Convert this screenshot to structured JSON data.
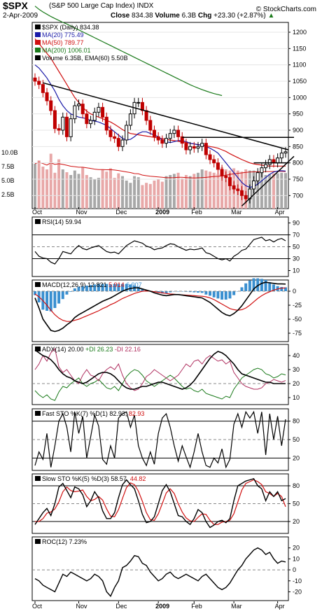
{
  "header": {
    "ticker": "$SPX",
    "name": "(S&P 500 Large Cap Index)",
    "exchange": "INDX",
    "date": "2-Apr-2009",
    "close_label": "Close",
    "close_value": "834.38",
    "volume_label": "Volume",
    "volume_value": "6.3B",
    "chg_label": "Chg",
    "chg_value": "+23.30 (+2.87%)",
    "chg_arrow": "▲",
    "watermark": "© StockCharts.com"
  },
  "colors": {
    "ma20": "#1a1aa8",
    "ma50": "#d01010",
    "ma200": "#1a7a1a",
    "up_candle": "#000000",
    "down_candle": "#c00000",
    "volume_up": "#a8a8a8",
    "volume_down": "#e8a8a8",
    "ema_volume": "#d01010",
    "macd_hist": "#3a8fd0",
    "pdi": "#1a7a1a",
    "mdi": "#b03060"
  },
  "x_axis": {
    "labels": [
      "Oct",
      "Nov",
      "Dec",
      "2009",
      "Feb",
      "Mar",
      "Apr"
    ],
    "bold_label": "2009"
  },
  "chart_data": [
    {
      "type": "candlestick",
      "panel": "price",
      "legend": [
        {
          "text": "$SPX (Daily) 834.38",
          "color": "#000000"
        },
        {
          "text": "MA(20) 775.49",
          "color": "#1a1aa8"
        },
        {
          "text": "MA(50) 789.77",
          "color": "#d01010"
        },
        {
          "text": "MA(200) 1006.01",
          "color": "#1a7a1a"
        },
        {
          "text": "Volume 6.35B, EMA(60) 5.50B",
          "color": "#000000"
        }
      ],
      "y_ticks": [
        1200,
        1150,
        1100,
        1050,
        1000,
        950,
        900,
        850,
        800,
        750,
        700
      ],
      "volume_ticks": [
        "10.0B",
        "7.5B",
        "5.0B",
        "2.5B"
      ],
      "ylim": [
        660,
        1230
      ],
      "closes": [
        1050,
        1040,
        1015,
        990,
        960,
        905,
        900,
        940,
        880,
        935,
        975,
        980,
        950,
        920,
        930,
        955,
        970,
        940,
        900,
        880,
        875,
        850,
        870,
        915,
        950,
        985,
        985,
        960,
        930,
        900,
        880,
        870,
        860,
        875,
        890,
        900,
        880,
        860,
        840,
        850,
        845,
        850,
        860,
        825,
        810,
        800,
        780,
        760,
        755,
        730,
        720,
        715,
        700,
        690,
        720,
        745,
        770,
        785,
        795,
        810,
        800,
        815,
        830,
        834
      ],
      "ma20": [
        1100,
        1090,
        1075,
        1060,
        1040,
        1020,
        995,
        975,
        960,
        950,
        945,
        940,
        938,
        935,
        930,
        928,
        925,
        920,
        915,
        905,
        895,
        885,
        875,
        870,
        872,
        880,
        890,
        895,
        895,
        890,
        885,
        880,
        870,
        865,
        862,
        865,
        868,
        868,
        865,
        860,
        858,
        855,
        855,
        850,
        845,
        838,
        830,
        815,
        800,
        785,
        770,
        755,
        740,
        730,
        725,
        728,
        735,
        745,
        755,
        765,
        772,
        775,
        776,
        775
      ],
      "ma50": [
        1180,
        1165,
        1150,
        1135,
        1120,
        1100,
        1080,
        1060,
        1040,
        1020,
        1000,
        985,
        970,
        958,
        950,
        945,
        940,
        935,
        930,
        925,
        918,
        910,
        902,
        895,
        890,
        888,
        886,
        884,
        882,
        880,
        878,
        876,
        874,
        872,
        870,
        868,
        866,
        864,
        862,
        860,
        858,
        856,
        854,
        852,
        850,
        848,
        845,
        840,
        835,
        828,
        822,
        816,
        810,
        805,
        800,
        797,
        795,
        793,
        791,
        790,
        790,
        790,
        790,
        790
      ],
      "ma200": [
        1280,
        1270,
        1262,
        1255,
        1248,
        1242,
        1236,
        1230,
        1225,
        1219,
        1213,
        1207,
        1201,
        1195,
        1189,
        1183,
        1177,
        1171,
        1165,
        1159,
        1153,
        1147,
        1141,
        1135,
        1129,
        1123,
        1117,
        1111,
        1105,
        1099,
        1093,
        1087,
        1081,
        1075,
        1069,
        1063,
        1057,
        1051,
        1045,
        1039,
        1034,
        1029,
        1024,
        1020,
        1016,
        1012,
        1009,
        1006
      ],
      "volume": [
        8.0,
        8.6,
        7.5,
        7.0,
        9.8,
        6.4,
        8.8,
        7.0,
        6.5,
        6.0,
        6.8,
        6.2,
        7.4,
        6.0,
        5.6,
        5.2,
        5.5,
        7.0,
        6.6,
        7.2,
        5.5,
        6.3,
        5.8,
        5.0,
        4.6,
        5.8,
        5.6,
        4.2,
        4.6,
        4.4,
        5.0,
        5.2,
        4.8,
        5.8,
        6.0,
        6.2,
        6.4,
        5.4,
        6.0,
        5.8,
        6.2,
        6.4,
        7.0,
        6.8,
        6.6,
        6.4,
        6.2,
        7.4,
        7.0,
        6.8,
        7.2,
        6.8,
        6.6,
        7.0,
        6.8,
        6.8,
        6.6,
        6.4,
        6.0,
        6.2,
        6.3,
        6.3,
        6.4,
        6.35
      ]
    },
    {
      "type": "line",
      "panel": "rsi",
      "legend": "RSI(14) 59.94",
      "y_ticks": [
        90,
        70,
        50,
        30,
        10
      ],
      "ylim": [
        0,
        100
      ],
      "values": [
        42,
        34,
        31,
        30,
        24,
        21,
        30,
        42,
        40,
        38,
        46,
        52,
        47,
        45,
        48,
        50,
        52,
        47,
        42,
        40,
        41,
        38,
        45,
        52,
        56,
        60,
        58,
        56,
        51,
        49,
        45,
        47,
        48,
        52,
        55,
        54,
        50,
        47,
        44,
        46,
        45,
        46,
        48,
        40,
        38,
        34,
        30,
        28,
        30,
        26,
        34,
        38,
        44,
        46,
        54,
        62,
        64,
        66,
        60,
        62,
        58,
        62,
        64,
        60
      ]
    },
    {
      "type": "line",
      "panel": "macd",
      "legend": [
        {
          "text": "MACD(12,26,9) 12.821",
          "color": "#000000"
        },
        {
          "text": "5.914",
          "color": "#d01010"
        },
        {
          "text": "6.907",
          "color": "#3a8fd0"
        }
      ],
      "y_ticks": [
        0,
        -25,
        -50,
        -75
      ],
      "ylim": [
        -90,
        20
      ],
      "macd": [
        -12,
        -30,
        -50,
        -60,
        -70,
        -72,
        -70,
        -66,
        -60,
        -55,
        -47,
        -42,
        -38,
        -34,
        -30,
        -26,
        -22,
        -18,
        -15,
        -12,
        -8,
        -4,
        0,
        3,
        5,
        6,
        6,
        4,
        2,
        0,
        -3,
        -5,
        -7,
        -8,
        -7,
        -6,
        -6,
        -7,
        -8,
        -9,
        -10,
        -11,
        -12,
        -16,
        -20,
        -26,
        -32,
        -38,
        -42,
        -44,
        -40,
        -34,
        -26,
        -16,
        -6,
        4,
        10,
        14,
        16,
        15,
        14,
        13,
        13,
        12.8
      ],
      "signal": [
        -5,
        -10,
        -17,
        -25,
        -34,
        -42,
        -48,
        -52,
        -54,
        -54,
        -52,
        -50,
        -47,
        -44,
        -41,
        -38,
        -35,
        -31,
        -28,
        -24,
        -21,
        -17,
        -13,
        -10,
        -7,
        -4,
        -2,
        0,
        0.5,
        0,
        -1,
        -2,
        -3,
        -4,
        -5,
        -5.5,
        -6,
        -6.5,
        -7,
        -7.5,
        -8,
        -8.5,
        -9,
        -10,
        -12,
        -15,
        -19,
        -23,
        -27,
        -31,
        -33,
        -34,
        -33,
        -30,
        -25,
        -19,
        -13,
        -8,
        -4,
        -1,
        2,
        4,
        5.5,
        5.9
      ],
      "histogram": [
        -7,
        -20,
        -33,
        -35,
        -36,
        -30,
        -22,
        -14,
        -6,
        -1,
        5,
        8,
        9,
        10,
        11,
        12,
        13,
        13,
        13,
        12,
        13,
        13,
        13,
        13,
        12,
        10,
        8,
        4,
        1.5,
        0,
        -2,
        -3,
        -4,
        -4,
        -2,
        -0.5,
        0,
        -0.5,
        -1,
        -1.5,
        -2,
        -2.5,
        -3,
        -6,
        -8,
        -11,
        -13,
        -15,
        -15,
        -13,
        -7,
        0,
        7,
        14,
        19,
        23,
        23,
        22,
        20,
        16,
        12,
        9,
        7.5,
        6.9
      ]
    },
    {
      "type": "line",
      "panel": "adx",
      "legend": [
        {
          "text": "ADX(14) 20.00",
          "color": "#000000"
        },
        {
          "text": "+DI 26.23",
          "color": "#1a7a1a"
        },
        {
          "text": "-DI 22.16",
          "color": "#b03060"
        }
      ],
      "y_ticks": [
        40,
        30,
        20,
        10
      ],
      "ylim": [
        5,
        48
      ],
      "adx": [
        44,
        42,
        40,
        39,
        37,
        34,
        30,
        27,
        25,
        24,
        22,
        21,
        20,
        21,
        23,
        25,
        27,
        28,
        28,
        27,
        25,
        22,
        19,
        17,
        16,
        16,
        17,
        18,
        18,
        19,
        20,
        21,
        21,
        20,
        19,
        18,
        17,
        16,
        17,
        19,
        22,
        26,
        30,
        34,
        38,
        41,
        43,
        42,
        40,
        37,
        34,
        30,
        27,
        26,
        25,
        24,
        23,
        22,
        21,
        21,
        20,
        20,
        20,
        20
      ],
      "plus_di": [
        15,
        12,
        10,
        12,
        9,
        8,
        14,
        18,
        17,
        20,
        22,
        24,
        20,
        18,
        20,
        21,
        23,
        20,
        17,
        16,
        18,
        15,
        20,
        25,
        28,
        30,
        29,
        26,
        22,
        20,
        18,
        20,
        22,
        24,
        26,
        24,
        21,
        18,
        16,
        17,
        15,
        14,
        16,
        13,
        12,
        11,
        10,
        9,
        11,
        10,
        16,
        20,
        24,
        26,
        28,
        30,
        31,
        30,
        27,
        26,
        24,
        25,
        27,
        26.2
      ],
      "minus_di": [
        30,
        34,
        40,
        36,
        42,
        45,
        32,
        28,
        30,
        26,
        22,
        20,
        26,
        30,
        26,
        25,
        22,
        27,
        30,
        32,
        30,
        34,
        26,
        20,
        17,
        15,
        16,
        20,
        25,
        27,
        30,
        28,
        26,
        24,
        22,
        24,
        26,
        30,
        34,
        32,
        36,
        37,
        34,
        38,
        40,
        38,
        36,
        37,
        34,
        36,
        28,
        24,
        20,
        18,
        17,
        16,
        16,
        17,
        20,
        21,
        23,
        22,
        21,
        22.2
      ]
    },
    {
      "type": "line",
      "panel": "fast_sto",
      "legend": [
        {
          "text": "Fast STO %K(7) %D(1) 82.93,",
          "color": "#000000"
        },
        {
          "text": "82.93",
          "color": "#d01010"
        }
      ],
      "y_ticks": [
        80,
        50,
        20
      ],
      "ylim": [
        0,
        100
      ],
      "values": [
        8,
        30,
        18,
        60,
        5,
        40,
        80,
        92,
        70,
        30,
        95,
        60,
        88,
        20,
        55,
        90,
        72,
        18,
        10,
        40,
        20,
        85,
        92,
        95,
        70,
        90,
        40,
        20,
        8,
        30,
        10,
        60,
        85,
        92,
        70,
        40,
        15,
        40,
        22,
        5,
        30,
        60,
        30,
        8,
        5,
        20,
        12,
        35,
        5,
        18,
        75,
        92,
        70,
        95,
        85,
        95,
        60,
        95,
        25,
        92,
        50,
        88,
        40,
        83
      ]
    },
    {
      "type": "line",
      "panel": "slow_sto",
      "legend": [
        {
          "text": "Slow STO %K(5) %D(3) 58.57,",
          "color": "#000000"
        },
        {
          "text": "44.82",
          "color": "#d01010"
        }
      ],
      "y_ticks": [
        80,
        50,
        20
      ],
      "ylim": [
        0,
        100
      ],
      "k": [
        15,
        25,
        35,
        42,
        30,
        50,
        78,
        84,
        72,
        60,
        78,
        75,
        65,
        45,
        55,
        70,
        60,
        38,
        25,
        25,
        35,
        60,
        82,
        90,
        82,
        75,
        55,
        32,
        18,
        20,
        28,
        50,
        72,
        82,
        70,
        50,
        30,
        28,
        20,
        15,
        25,
        40,
        35,
        20,
        10,
        14,
        20,
        22,
        18,
        25,
        55,
        80,
        84,
        88,
        90,
        92,
        80,
        75,
        55,
        70,
        62,
        70,
        55,
        58.6
      ],
      "d": [
        20,
        20,
        25,
        34,
        36,
        41,
        53,
        70,
        78,
        72,
        70,
        71,
        73,
        62,
        55,
        57,
        62,
        56,
        41,
        29,
        28,
        40,
        59,
        77,
        85,
        82,
        71,
        54,
        35,
        23,
        22,
        33,
        50,
        68,
        75,
        67,
        50,
        36,
        26,
        21,
        20,
        27,
        33,
        32,
        22,
        15,
        15,
        19,
        20,
        22,
        33,
        53,
        73,
        84,
        87,
        90,
        87,
        82,
        70,
        67,
        62,
        67,
        62,
        44.8
      ]
    },
    {
      "type": "line",
      "panel": "roc",
      "legend": "ROC(12) 7.23%",
      "y_ticks": [
        20,
        10,
        0,
        -10,
        -20
      ],
      "ylim": [
        -28,
        30
      ],
      "values": [
        -8,
        -10,
        -14,
        -16,
        -18,
        -20,
        -12,
        -4,
        -6,
        -2,
        -4,
        -6,
        -8,
        -10,
        -8,
        -4,
        -6,
        -10,
        -20,
        -24,
        -16,
        -10,
        2,
        4,
        8,
        13,
        12,
        6,
        4,
        -2,
        -6,
        -10,
        -8,
        -4,
        -2,
        -6,
        -8,
        -6,
        -4,
        -6,
        -8,
        -10,
        -6,
        -4,
        -8,
        -12,
        -16,
        -18,
        -16,
        -12,
        -6,
        0,
        4,
        10,
        14,
        18,
        20,
        18,
        14,
        16,
        10,
        6,
        8,
        7.2
      ]
    }
  ]
}
